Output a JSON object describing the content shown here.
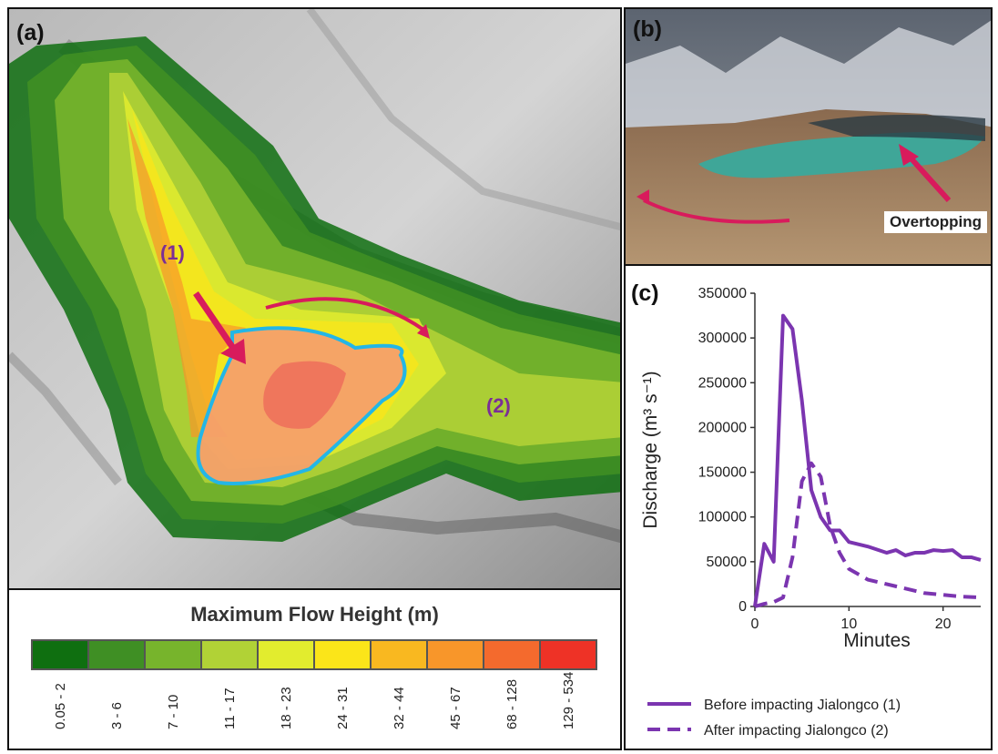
{
  "panel_a": {
    "label": "(a)",
    "marker_1": "(1)",
    "marker_2": "(2)"
  },
  "legend": {
    "title": "Maximum Flow Height (m)",
    "classes": [
      {
        "range": "0.05 - 2",
        "color": "#0f6f10"
      },
      {
        "range": "3 - 6",
        "color": "#3f8f24"
      },
      {
        "range": "7 - 10",
        "color": "#77b42c"
      },
      {
        "range": "11 - 17",
        "color": "#b1d236"
      },
      {
        "range": "18 - 23",
        "color": "#e2ec2e"
      },
      {
        "range": "24 - 31",
        "color": "#fbe519"
      },
      {
        "range": "32 - 44",
        "color": "#f9b820"
      },
      {
        "range": "45 - 67",
        "color": "#f8962a"
      },
      {
        "range": "68 - 128",
        "color": "#f46a2d"
      },
      {
        "range": "129 - 534",
        "color": "#ee3226"
      }
    ]
  },
  "panel_b": {
    "label": "(b)",
    "annotation": "Overtopping"
  },
  "panel_c": {
    "label": "(c)",
    "chart_data": {
      "type": "line",
      "xlabel": "Minutes",
      "ylabel": "Discharge (m³ s⁻¹)",
      "xlim": [
        0,
        24
      ],
      "ylim": [
        0,
        350000
      ],
      "xticks": [
        0,
        10,
        20
      ],
      "yticks": [
        0,
        50000,
        100000,
        150000,
        200000,
        250000,
        300000,
        350000
      ],
      "grid": false,
      "legend_position": "bottom",
      "series": [
        {
          "name": "Before impacting Jialongco (1)",
          "style": "solid",
          "color": "#7b35b0",
          "x": [
            0,
            1,
            2,
            3,
            4,
            5,
            6,
            7,
            8,
            9,
            10,
            12,
            14,
            15,
            16,
            17,
            18,
            19,
            20,
            21,
            22,
            23,
            24
          ],
          "y": [
            0,
            70000,
            50000,
            325000,
            310000,
            230000,
            130000,
            100000,
            85000,
            85000,
            72000,
            67000,
            60000,
            63000,
            57000,
            60000,
            60000,
            63000,
            62000,
            63000,
            55000,
            55000,
            52000
          ]
        },
        {
          "name": "After impacting Jialongco (2)",
          "style": "dashed",
          "color": "#7b35b0",
          "x": [
            0,
            1,
            2,
            3,
            4,
            5,
            6,
            7,
            8,
            9,
            10,
            12,
            14,
            16,
            18,
            20,
            22,
            24
          ],
          "y": [
            0,
            3000,
            5000,
            10000,
            55000,
            140000,
            160000,
            145000,
            90000,
            60000,
            42000,
            30000,
            25000,
            20000,
            15000,
            13000,
            11000,
            10000
          ]
        }
      ]
    }
  }
}
